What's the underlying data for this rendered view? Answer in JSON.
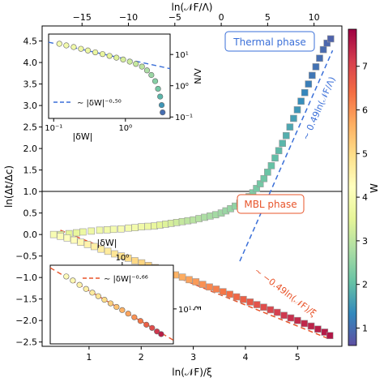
{
  "chart_data": [
    {
      "panel": "main",
      "type": "scatter",
      "xlabel_bottom": "ln(𝒩F)/ξ",
      "xlabel_top": "ln(𝒩F/Λ)",
      "ylabel": "ln(Δt/Δc)",
      "xlim_bottom": [
        0.1,
        5.85
      ],
      "xlim_top": [
        -19.3,
        13.0
      ],
      "ylim": [
        -2.6,
        4.85
      ],
      "x_ticks_bottom": [
        "1",
        "2",
        "3",
        "4",
        "5"
      ],
      "x_ticks_top": [
        "−15",
        "−10",
        "−5",
        "0",
        "5",
        "10"
      ],
      "y_ticks": [
        "−2.5",
        "−2.0",
        "−1.5",
        "−1.0",
        "−0.5",
        "0.0",
        "0.5",
        "1.0",
        "1.5",
        "2.0",
        "2.5",
        "3.0",
        "3.5",
        "4.0",
        "4.5"
      ],
      "phase_labels": {
        "thermal": "Thermal phase",
        "mbl": "MBL phase"
      },
      "annotations": {
        "thermal_fit": "∼ 0.49ln(𝒩F/Λ)",
        "mbl_fit": "∼ −0.49ln(𝒩F)/ξ"
      },
      "thermal_fit": {
        "slope": 0.49,
        "x_range": [
          2.0,
          12.0
        ],
        "intercept": -1.6
      },
      "mbl_fit": {
        "slope": -0.49,
        "x_range": [
          0.45,
          5.6
        ],
        "intercept": 0.32
      },
      "thermal_points": {
        "x_top": [
          -17.3,
          -16.4,
          -15.6,
          -14.9,
          -14.0,
          -13.1,
          -12.3,
          -11.6,
          -10.8,
          -10.0,
          -9.3,
          -8.6,
          -7.9,
          -7.2,
          -6.6,
          -6.0,
          -5.4,
          -4.8,
          -4.2,
          -3.6,
          -3.0,
          -2.4,
          -1.8,
          -1.2,
          -0.6,
          0.0,
          0.5,
          1.0,
          1.5,
          2.0,
          2.5,
          3.0,
          3.4,
          3.8,
          4.2,
          4.6,
          5.0,
          5.4,
          5.8,
          6.2,
          6.6,
          7.0,
          7.4,
          7.8,
          8.2,
          8.6,
          9.0,
          9.4,
          9.8,
          10.2,
          10.6,
          11.0,
          11.4,
          11.8
        ],
        "y": [
          0.0,
          0.02,
          0.04,
          0.06,
          0.08,
          0.1,
          0.11,
          0.12,
          0.13,
          0.15,
          0.16,
          0.18,
          0.19,
          0.2,
          0.22,
          0.24,
          0.26,
          0.28,
          0.3,
          0.32,
          0.34,
          0.37,
          0.4,
          0.43,
          0.46,
          0.5,
          0.55,
          0.6,
          0.66,
          0.73,
          0.8,
          0.88,
          0.97,
          1.07,
          1.18,
          1.3,
          1.45,
          1.6,
          1.78,
          1.95,
          2.12,
          2.3,
          2.5,
          2.7,
          2.9,
          3.1,
          3.3,
          3.5,
          3.7,
          3.9,
          4.1,
          4.3,
          4.45,
          4.55
        ],
        "W": [
          3.4,
          3.5,
          3.6,
          3.7,
          3.75,
          3.8,
          3.85,
          3.9,
          3.95,
          3.9,
          3.85,
          3.8,
          3.7,
          3.6,
          3.5,
          3.4,
          3.3,
          3.2,
          3.1,
          3.0,
          2.95,
          2.9,
          2.8,
          2.75,
          2.7,
          2.65,
          2.6,
          2.55,
          2.5,
          2.45,
          2.4,
          2.35,
          2.3,
          2.25,
          2.2,
          2.15,
          2.1,
          2.05,
          2.0,
          1.95,
          1.9,
          1.8,
          1.7,
          1.6,
          1.5,
          1.4,
          1.3,
          1.2,
          1.1,
          1.05,
          1.0,
          0.95,
          0.9,
          0.85
        ]
      },
      "mbl_points": {
        "x": [
          0.32,
          0.45,
          0.58,
          0.71,
          0.84,
          0.97,
          1.1,
          1.23,
          1.36,
          1.49,
          1.62,
          1.75,
          1.88,
          2.01,
          2.14,
          2.27,
          2.4,
          2.53,
          2.66,
          2.79,
          2.92,
          3.05,
          3.18,
          3.31,
          3.44,
          3.57,
          3.7,
          3.83,
          3.96,
          4.09,
          4.22,
          4.35,
          4.48,
          4.61,
          4.74,
          4.87,
          5.0,
          5.13,
          5.26,
          5.39,
          5.52,
          5.62
        ],
        "y": [
          0.0,
          -0.04,
          -0.08,
          -0.13,
          -0.18,
          -0.23,
          -0.28,
          -0.34,
          -0.39,
          -0.45,
          -0.5,
          -0.55,
          -0.61,
          -0.66,
          -0.72,
          -0.77,
          -0.83,
          -0.88,
          -0.94,
          -0.99,
          -1.05,
          -1.1,
          -1.16,
          -1.22,
          -1.27,
          -1.33,
          -1.39,
          -1.45,
          -1.51,
          -1.57,
          -1.63,
          -1.69,
          -1.75,
          -1.81,
          -1.88,
          -1.94,
          -2.0,
          -2.07,
          -2.13,
          -2.2,
          -2.27,
          -2.35
        ],
        "W": [
          4.0,
          4.1,
          4.2,
          4.3,
          4.4,
          4.5,
          4.6,
          4.65,
          4.7,
          4.8,
          4.9,
          5.0,
          5.05,
          5.1,
          5.2,
          5.3,
          5.4,
          5.5,
          5.6,
          5.7,
          5.8,
          5.9,
          6.0,
          6.1,
          6.2,
          6.3,
          6.4,
          6.5,
          6.6,
          6.7,
          6.8,
          6.9,
          7.0,
          7.1,
          7.2,
          7.3,
          7.35,
          7.4,
          7.45,
          7.5,
          7.55,
          7.6
        ]
      }
    },
    {
      "panel": "inset-thermal",
      "type": "scatter",
      "xlabel": "|δW|",
      "ylabel": "Λ/N",
      "xscale": "log",
      "yscale": "log",
      "x_ticks": [
        "10⁻¹",
        "10⁰"
      ],
      "y_ticks": [
        "10¹",
        "10⁰",
        "10⁻¹"
      ],
      "legend": "∼ |δW|⁻⁰·⁵⁰",
      "points": {
        "x": [
          0.12,
          0.15,
          0.19,
          0.24,
          0.3,
          0.38,
          0.48,
          0.6,
          0.75,
          0.93,
          1.15,
          1.4,
          1.7,
          2.0,
          2.3,
          2.6,
          2.85,
          3.05,
          3.2,
          3.3
        ],
        "y": [
          22.0,
          19.5,
          17.3,
          15.2,
          13.4,
          11.7,
          10.3,
          9.0,
          7.9,
          6.9,
          5.9,
          5.0,
          4.1,
          3.1,
          2.2,
          1.4,
          0.8,
          0.45,
          0.24,
          0.14
        ],
        "W": [
          3.9,
          3.85,
          3.8,
          3.75,
          3.7,
          3.65,
          3.6,
          3.5,
          3.4,
          3.3,
          3.2,
          3.1,
          3.0,
          2.8,
          2.6,
          2.4,
          2.2,
          1.9,
          1.5,
          1.0
        ]
      },
      "fit": {
        "exponent": -0.5,
        "prefactor": 7.2
      },
      "xlim": [
        0.085,
        4.2
      ],
      "ylim": [
        0.09,
        45
      ]
    },
    {
      "panel": "inset-mbl",
      "type": "scatter",
      "xlabel": "|δW|",
      "ylabel": "ξ",
      "xscale": "log",
      "yscale": "log",
      "x_ticks": [
        "10⁰"
      ],
      "y_ticks": [
        "10¹"
      ],
      "legend": "∼ |δW|⁻⁰·⁶⁶",
      "points": {
        "x": [
          0.18,
          0.22,
          0.27,
          0.33,
          0.4,
          0.48,
          0.58,
          0.7,
          0.84,
          1.0,
          1.2,
          1.45,
          1.75,
          2.1,
          2.5,
          2.9,
          3.3
        ],
        "y": [
          30.5,
          26.6,
          22.9,
          19.9,
          17.5,
          15.5,
          13.7,
          12.1,
          10.7,
          9.6,
          8.5,
          7.5,
          6.6,
          5.8,
          5.2,
          4.6,
          4.2
        ],
        "W": [
          4.3,
          4.4,
          4.5,
          4.6,
          4.7,
          4.8,
          5.0,
          5.2,
          5.4,
          5.6,
          5.8,
          6.0,
          6.3,
          6.6,
          6.9,
          7.2,
          7.5
        ]
      },
      "fit": {
        "exponent": -0.66,
        "prefactor": 9.6
      },
      "xlim": [
        0.11,
        4.8
      ],
      "ylim": [
        3.0,
        45
      ]
    },
    {
      "panel": "colorbar",
      "type": "colorbar",
      "label": "W",
      "range": [
        0.6,
        7.85
      ],
      "ticks": [
        "1",
        "2",
        "3",
        "4",
        "5",
        "6",
        "7"
      ],
      "colormap": "Spectral_r"
    }
  ]
}
